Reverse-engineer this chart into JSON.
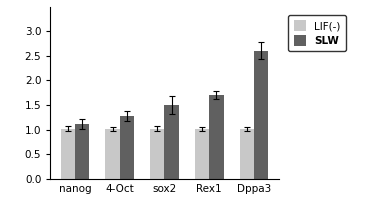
{
  "categories": [
    "nanog",
    "4-Oct",
    "sox2",
    "Rex1",
    "Dppa3"
  ],
  "lif_values": [
    1.02,
    1.02,
    1.02,
    1.02,
    1.02
  ],
  "slw_values": [
    1.12,
    1.28,
    1.5,
    1.7,
    2.6
  ],
  "lif_errors": [
    0.05,
    0.04,
    0.05,
    0.04,
    0.04
  ],
  "slw_errors": [
    0.1,
    0.1,
    0.18,
    0.08,
    0.17
  ],
  "lif_color": "#c8c8c8",
  "slw_color": "#606060",
  "lif_label": "LIF(-)",
  "slw_label": "SLW",
  "ylim": [
    0,
    3.5
  ],
  "yticks": [
    0,
    0.5,
    1.0,
    1.5,
    2.0,
    2.5,
    3.0
  ],
  "bar_width": 0.32,
  "legend_fontsize": 7.5,
  "tick_fontsize": 7.5,
  "background_color": "#ffffff"
}
